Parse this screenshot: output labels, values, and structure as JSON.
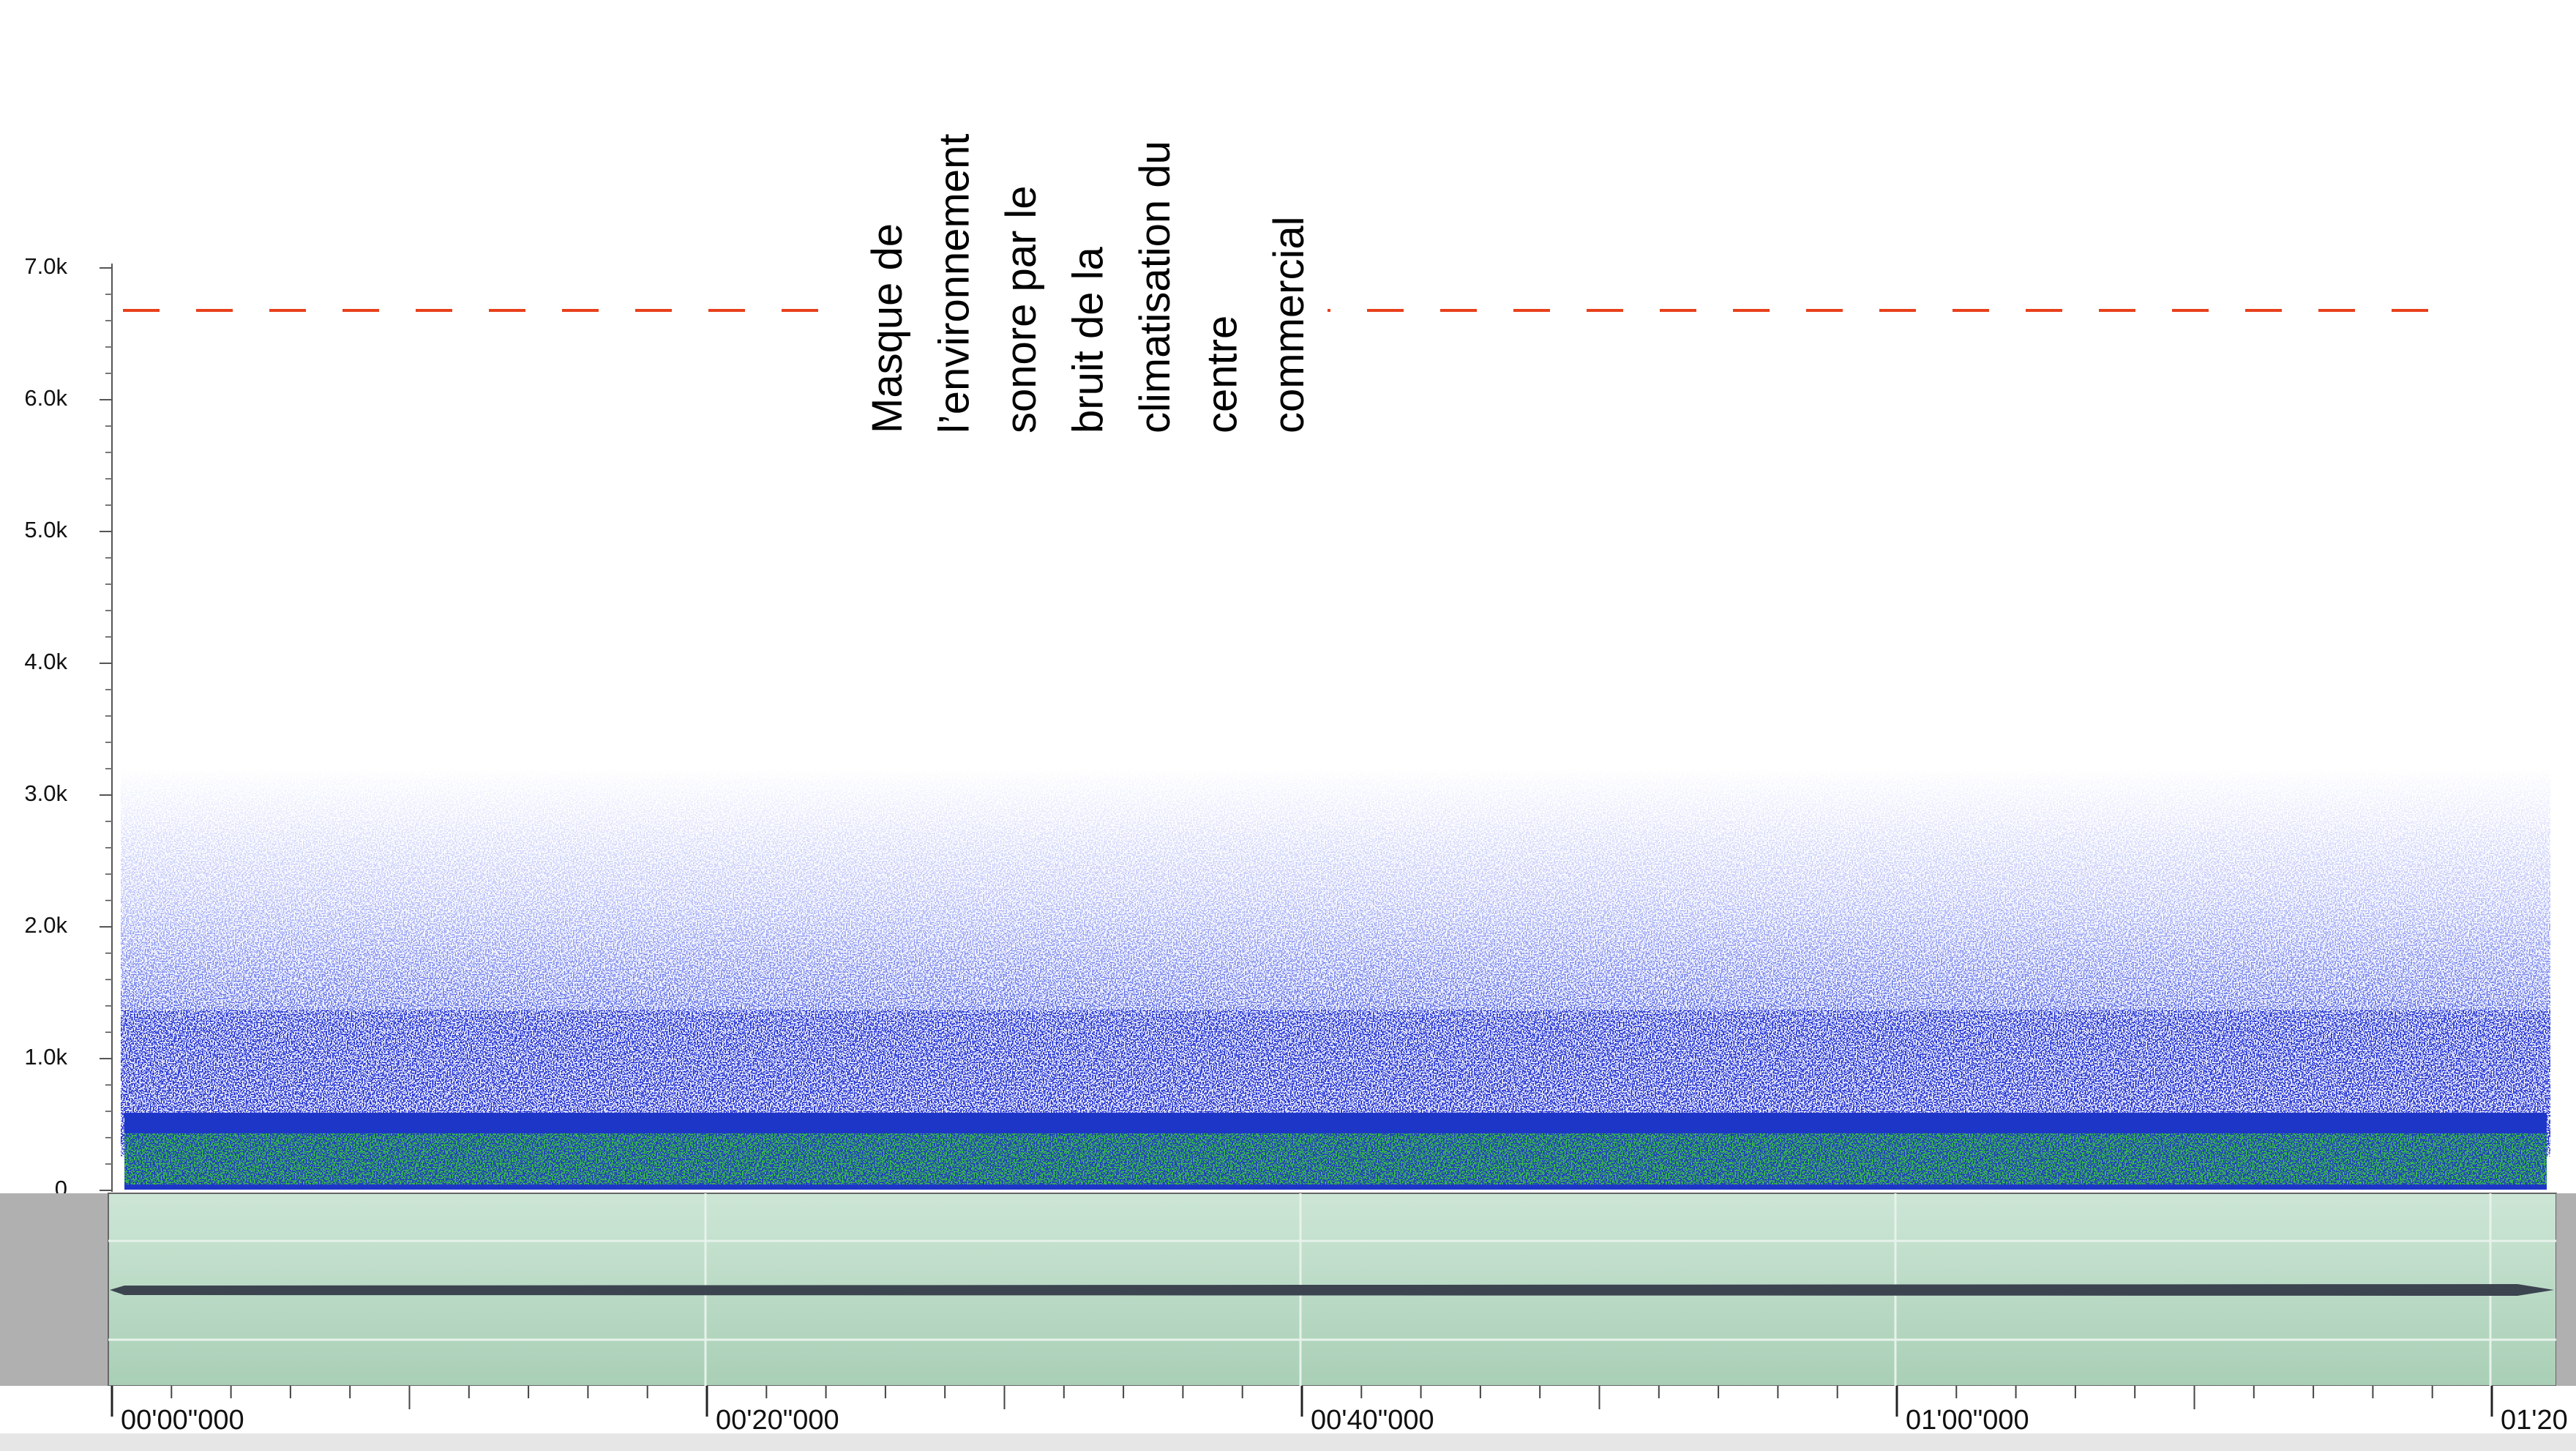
{
  "y_axis": {
    "labels": [
      "7.0k",
      "6.0k",
      "5.0k",
      "4.0k",
      "3.0k",
      "2.0k",
      "1.0k",
      "0"
    ]
  },
  "time_axis": {
    "labels": [
      "00'00\"000",
      "00'20\"000",
      "00'40\"000",
      "01'00\"000",
      "01'20"
    ]
  },
  "annotation": {
    "lines": [
      "Masque de",
      "l’environnement",
      "sonore par le",
      "bruit de la",
      "climatisation du",
      "centre",
      "commercial"
    ]
  }
}
